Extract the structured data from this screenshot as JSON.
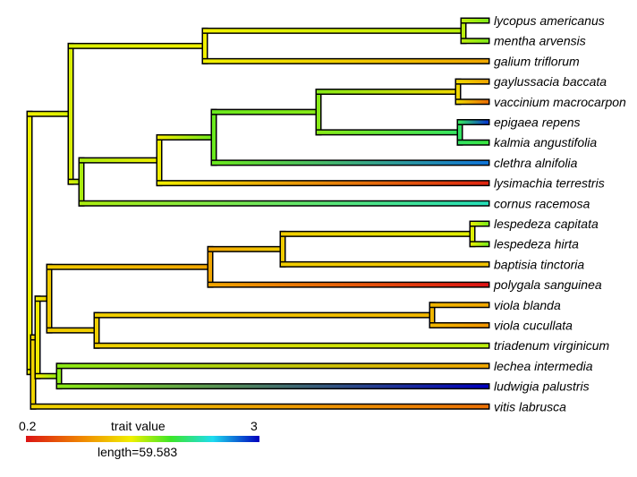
{
  "tips": [
    {
      "label": "lycopus americanus",
      "value": 1.75
    },
    {
      "label": "mentha arvensis",
      "value": 1.75
    },
    {
      "label": "galium triflorum",
      "value": 1.05
    },
    {
      "label": "gaylussacia baccata",
      "value": 1.05
    },
    {
      "label": "vaccinium macrocarpon",
      "value": 0.75
    },
    {
      "label": "epigaea repens",
      "value": 2.85
    },
    {
      "label": "kalmia angustifolia",
      "value": 2.0
    },
    {
      "label": "clethra alnifolia",
      "value": 2.7
    },
    {
      "label": "lysimachia terrestris",
      "value": 0.3
    },
    {
      "label": "cornus racemosa",
      "value": 2.3
    },
    {
      "label": "lespedeza capitata",
      "value": 1.75
    },
    {
      "label": "lespedeza hirta",
      "value": 1.75
    },
    {
      "label": "baptisia tinctoria",
      "value": 1.2
    },
    {
      "label": "polygala sanguinea",
      "value": 0.2
    },
    {
      "label": "viola blanda",
      "value": 1.05
    },
    {
      "label": "viola cucullata",
      "value": 0.95
    },
    {
      "label": "triadenum virginicum",
      "value": 1.6
    },
    {
      "label": "lechea intermedia",
      "value": 1.05
    },
    {
      "label": "ludwigia palustris",
      "value": 3.0
    },
    {
      "label": "vitis labrusca",
      "value": 0.75
    }
  ],
  "legend": {
    "min_label": "0.2",
    "max_label": "3",
    "title": "trait value",
    "length_label": "length=59.583"
  }
}
